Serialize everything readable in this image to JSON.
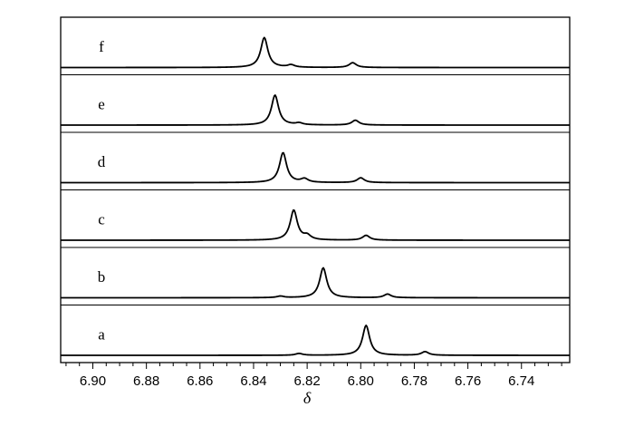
{
  "chart_data": {
    "type": "line",
    "xlabel": "δ",
    "xlim": [
      6.912,
      6.722
    ],
    "x_reversed": true,
    "x_ticks": [
      6.9,
      6.88,
      6.86,
      6.84,
      6.82,
      6.8,
      6.78,
      6.76,
      6.74
    ],
    "x_tick_labels": [
      "6.90",
      "6.88",
      "6.86",
      "6.84",
      "6.82",
      "6.80",
      "6.78",
      "6.76",
      "6.74"
    ],
    "grid": false,
    "panels": [
      {
        "label": "f",
        "peaks": [
          {
            "x": 6.836,
            "h": 1.0
          },
          {
            "x": 6.826,
            "h": 0.08
          },
          {
            "x": 6.803,
            "h": 0.16
          }
        ]
      },
      {
        "label": "e",
        "peaks": [
          {
            "x": 6.832,
            "h": 1.0
          },
          {
            "x": 6.823,
            "h": 0.06
          },
          {
            "x": 6.802,
            "h": 0.16
          }
        ]
      },
      {
        "label": "d",
        "peaks": [
          {
            "x": 6.829,
            "h": 1.0
          },
          {
            "x": 6.821,
            "h": 0.12
          },
          {
            "x": 6.8,
            "h": 0.16
          }
        ]
      },
      {
        "label": "c",
        "peaks": [
          {
            "x": 6.825,
            "h": 1.0
          },
          {
            "x": 6.82,
            "h": 0.14
          },
          {
            "x": 6.798,
            "h": 0.16
          }
        ]
      },
      {
        "label": "b",
        "peaks": [
          {
            "x": 6.814,
            "h": 1.0
          },
          {
            "x": 6.83,
            "h": 0.05
          },
          {
            "x": 6.79,
            "h": 0.12
          }
        ]
      },
      {
        "label": "a",
        "peaks": [
          {
            "x": 6.798,
            "h": 1.0
          },
          {
            "x": 6.823,
            "h": 0.06
          },
          {
            "x": 6.776,
            "h": 0.12
          }
        ]
      }
    ]
  }
}
